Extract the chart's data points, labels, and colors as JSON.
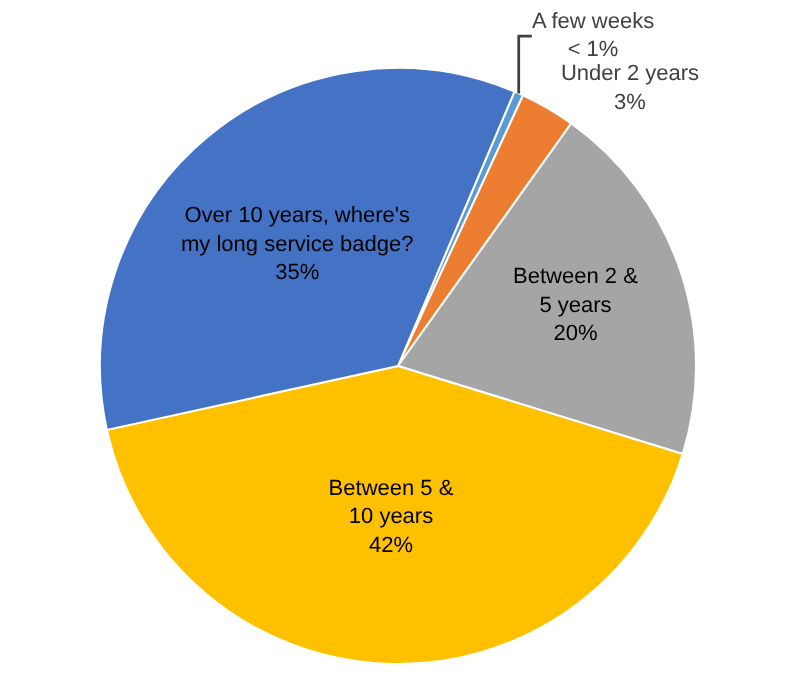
{
  "chart_data": {
    "type": "pie",
    "categories": [
      "A few weeks",
      "Under 2 years",
      "Between 2 & 5 years",
      "Between 5 & 10 years",
      "Over 10 years, where's my long service badge?"
    ],
    "values": [
      0.5,
      3,
      20,
      42,
      35
    ],
    "value_labels": [
      "< 1%",
      "3%",
      "20%",
      "42%",
      "35%"
    ],
    "colors": [
      "#5b9bd5",
      "#ed7d31",
      "#a5a5a5",
      "#ffc000",
      "#4472c4"
    ],
    "legend": false
  }
}
